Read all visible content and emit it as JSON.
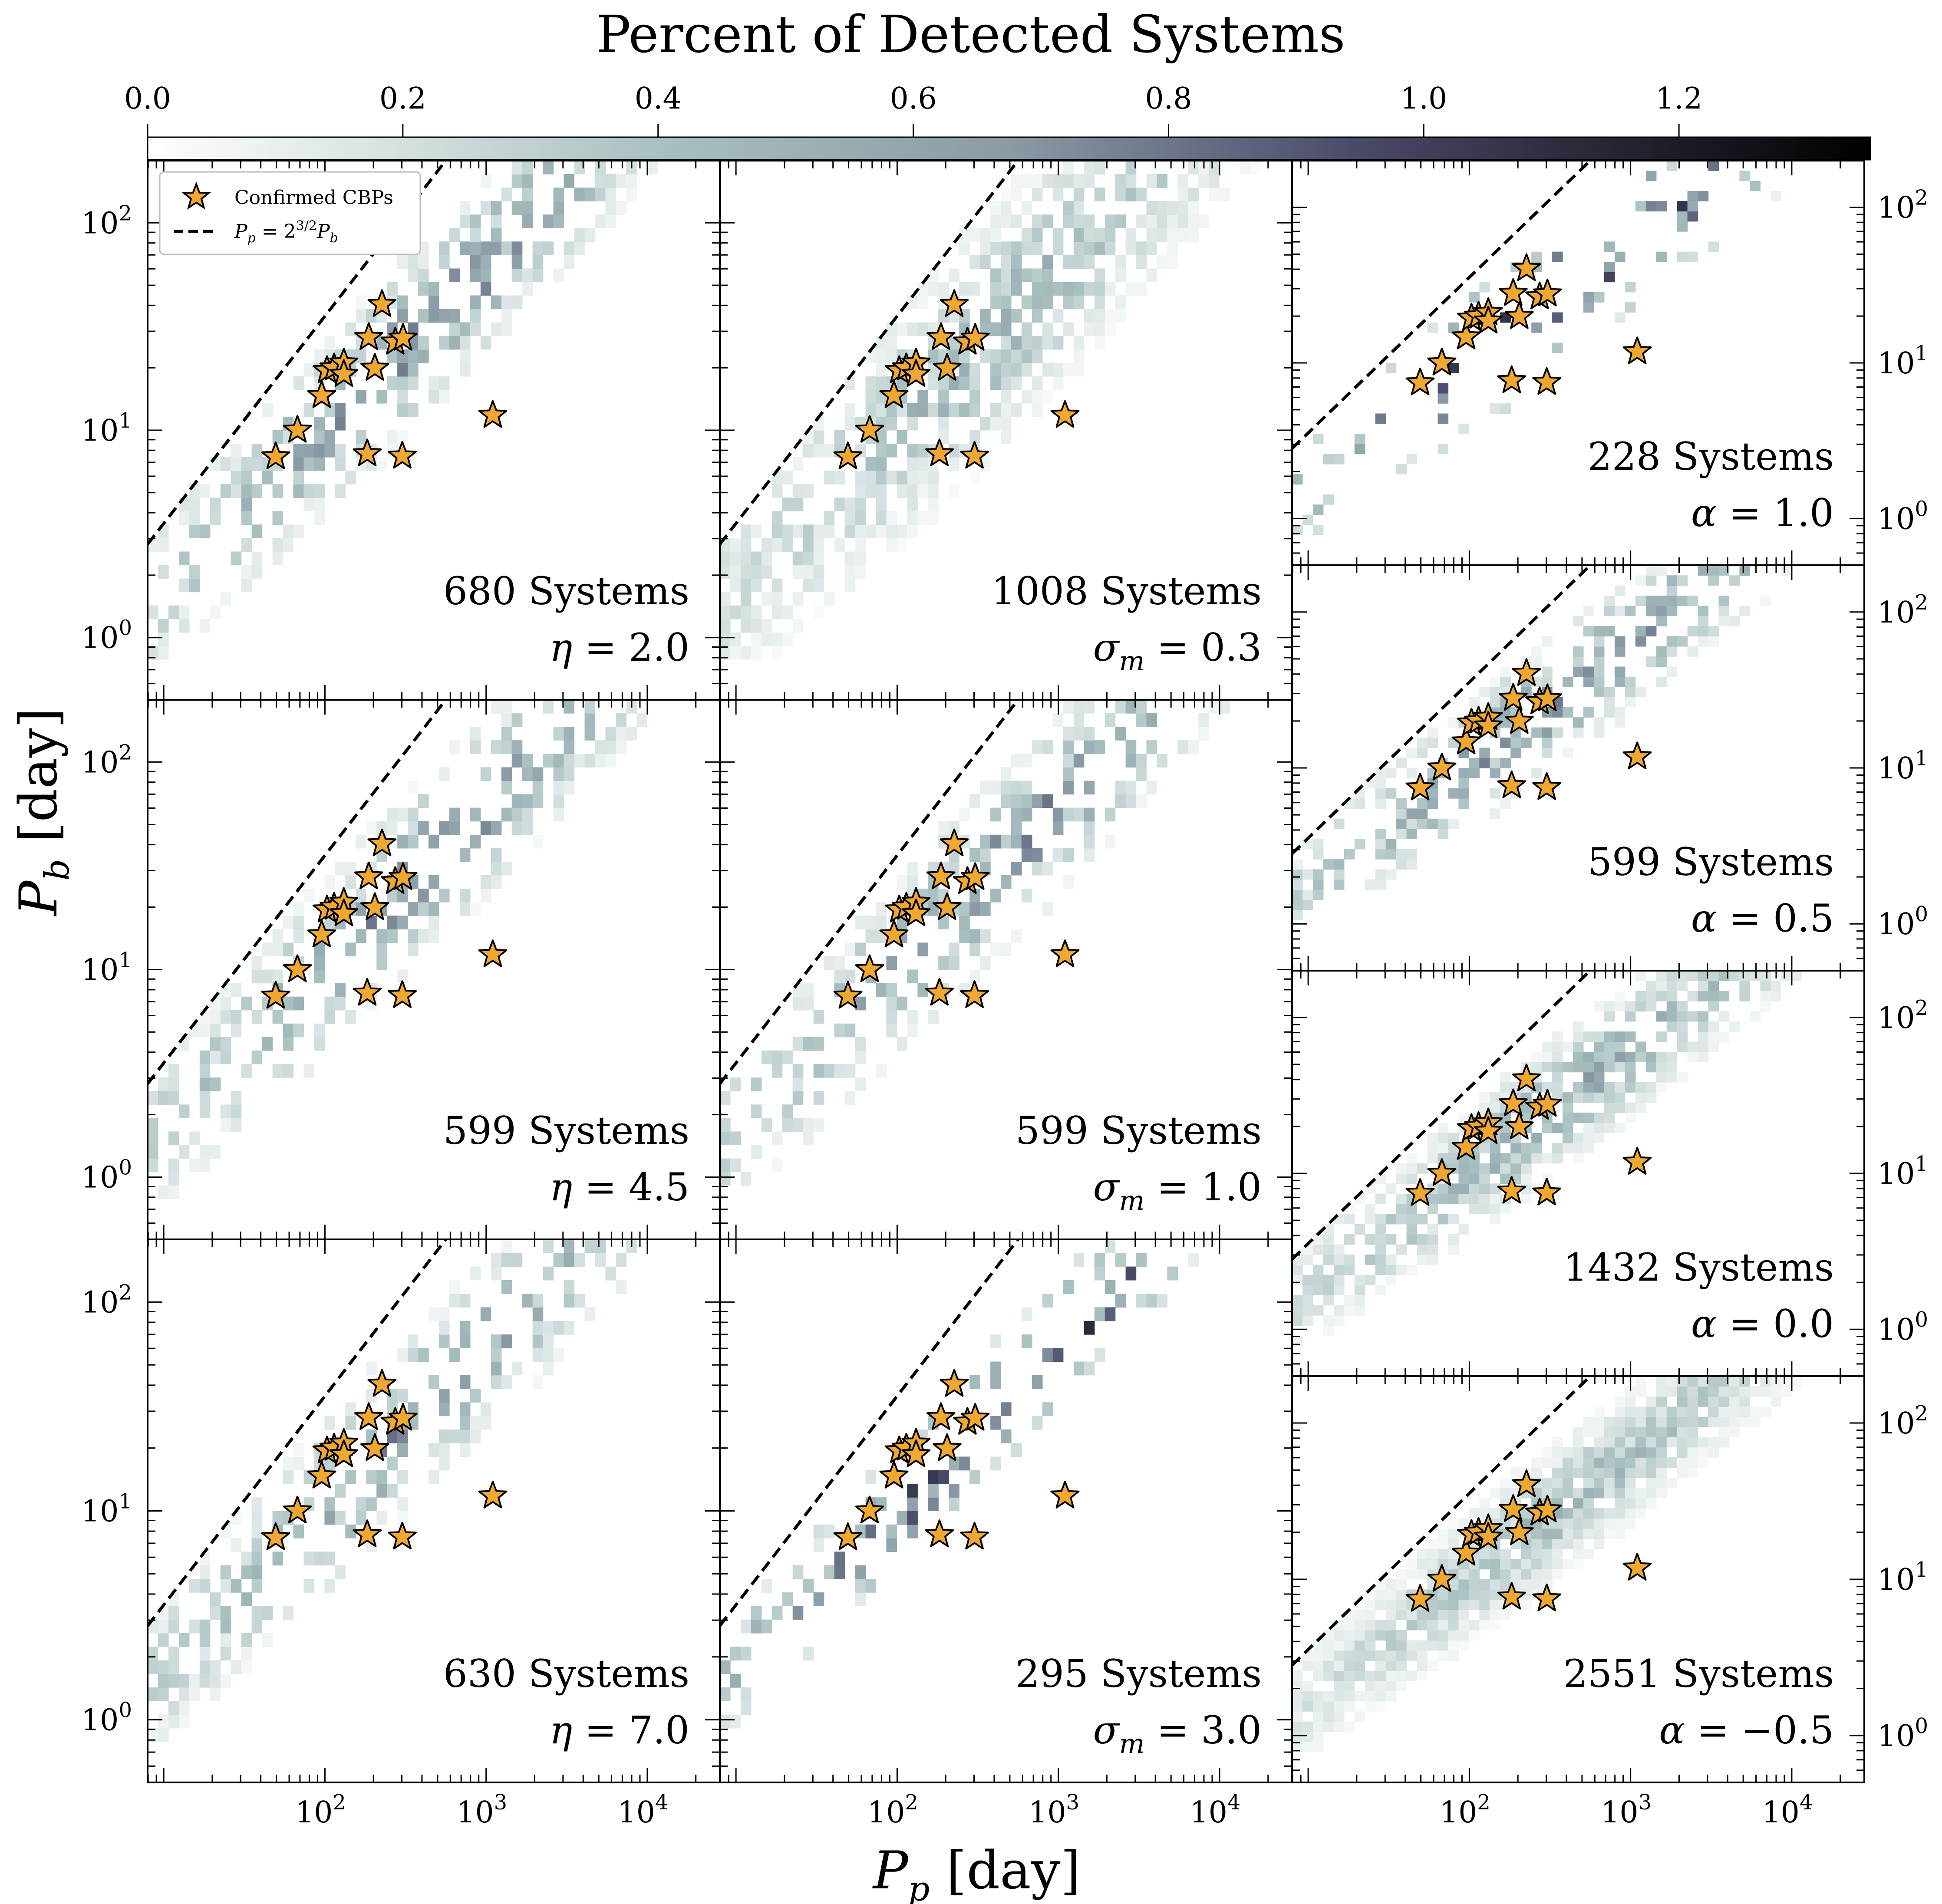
{
  "colorbar": {
    "title": "Percent of Detected Systems",
    "range": [
      0.0,
      1.35
    ],
    "ticks": [
      "0.0",
      "0.2",
      "0.4",
      "0.6",
      "0.8",
      "1.0",
      "1.2"
    ],
    "colors": [
      "#ffffff",
      "#a8c0c0",
      "#8a9ba6",
      "#4a4a6a",
      "#000000"
    ]
  },
  "axes": {
    "xlabel": "P_p [day]",
    "ylabel": "P_b [day]",
    "x_range_log10": [
      0.9,
      4.45
    ],
    "y_range_log10": [
      -0.3,
      2.3
    ],
    "x_ticks": [
      {
        "v": 2,
        "label": "10^2"
      },
      {
        "v": 3,
        "label": "10^3"
      },
      {
        "v": 4,
        "label": "10^4"
      }
    ],
    "y_ticks": [
      {
        "v": 0,
        "label": "10^0"
      },
      {
        "v": 1,
        "label": "10^1"
      },
      {
        "v": 2,
        "label": "10^2"
      }
    ]
  },
  "legend": {
    "stars_label": "Confirmed CBPs",
    "line_label": "P_p = 2^{3/2} P_b"
  },
  "chart_data": {
    "type": "heatmap",
    "description_free": true,
    "confirmed_cbps": [
      {
        "pp": 49.5,
        "pb": 7.45
      },
      {
        "pp": 67.5,
        "pb": 10.0
      },
      {
        "pp": 95.5,
        "pb": 14.7
      },
      {
        "pp": 103,
        "pb": 19.4
      },
      {
        "pp": 114,
        "pb": 20.0
      },
      {
        "pp": 131,
        "pb": 21.1
      },
      {
        "pp": 131,
        "pb": 18.6
      },
      {
        "pp": 183,
        "pb": 7.7
      },
      {
        "pp": 187,
        "pb": 28.0
      },
      {
        "pp": 204,
        "pb": 19.9
      },
      {
        "pp": 226,
        "pb": 40.4
      },
      {
        "pp": 273,
        "pb": 26.6
      },
      {
        "pp": 302,
        "pb": 7.5
      },
      {
        "pp": 305,
        "pb": 27.8
      },
      {
        "pp": 1100,
        "pb": 11.8
      }
    ],
    "panels": [
      {
        "id": "eta-2",
        "count": "680 Systems",
        "param": "η = 2.0",
        "line_offset": 0.63,
        "spread": 0.22,
        "intensity": 0.45,
        "sparse": 0.55
      },
      {
        "id": "sigma-0.3",
        "count": "1008 Systems",
        "param": "σ_m = 0.3",
        "line_offset": 0.62,
        "spread": 0.3,
        "intensity": 0.3,
        "sparse": 0.4
      },
      {
        "id": "alpha-1",
        "count": "228 Systems",
        "param": "α = 1.0",
        "line_offset": 0.63,
        "spread": 0.25,
        "intensity": 0.75,
        "sparse": 0.88
      },
      {
        "id": "eta-4.5",
        "count": "599 Systems",
        "param": "η = 4.5",
        "line_offset": 0.63,
        "spread": 0.22,
        "intensity": 0.45,
        "sparse": 0.6
      },
      {
        "id": "sigma-1",
        "count": "599 Systems",
        "param": "σ_m = 1.0",
        "line_offset": 0.63,
        "spread": 0.22,
        "intensity": 0.45,
        "sparse": 0.6
      },
      {
        "id": "alpha-0.5",
        "count": "599 Systems",
        "param": "α = 0.5",
        "line_offset": 0.63,
        "spread": 0.22,
        "intensity": 0.45,
        "sparse": 0.6
      },
      {
        "id": "alpha-0",
        "count": "1432 Systems",
        "param": "α = 0.0",
        "line_offset": 0.63,
        "spread": 0.22,
        "intensity": 0.35,
        "sparse": 0.3
      },
      {
        "id": "eta-7",
        "count": "630 Systems",
        "param": "η = 7.0",
        "line_offset": 0.63,
        "spread": 0.22,
        "intensity": 0.42,
        "sparse": 0.6
      },
      {
        "id": "sigma-3",
        "count": "295 Systems",
        "param": "σ_m = 3.0",
        "line_offset": 0.63,
        "spread": 0.16,
        "intensity": 0.7,
        "sparse": 0.75
      },
      {
        "id": "alpha-neg0.5",
        "count": "2551 Systems",
        "param": "α = −0.5",
        "line_offset": 0.63,
        "spread": 0.22,
        "intensity": 0.28,
        "sparse": 0.1
      }
    ]
  }
}
